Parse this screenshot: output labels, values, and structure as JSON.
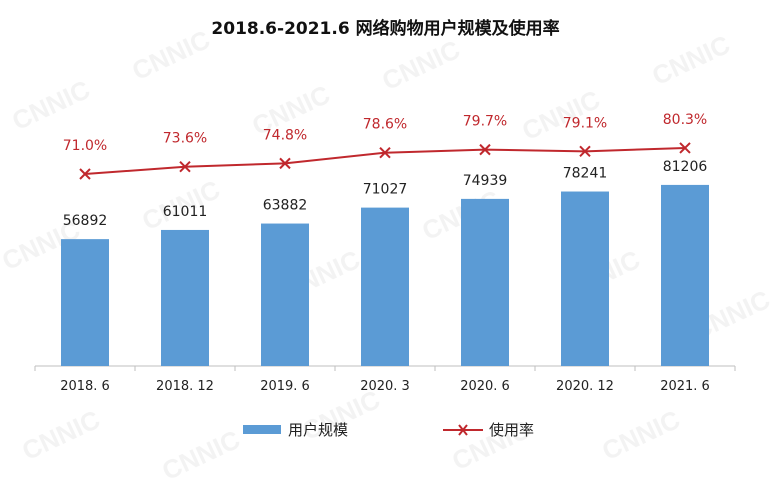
{
  "watermark": "CNNIC",
  "chart_data": {
    "type": "bar+line",
    "title": "2018.6-2021.6 网络购物用户规模及使用率",
    "categories": [
      "2018. 6",
      "2018. 12",
      "2019. 6",
      "2020. 3",
      "2020. 6",
      "2020. 12",
      "2021. 6"
    ],
    "series": [
      {
        "name": "用户规模",
        "type": "bar",
        "color": "#5b9bd5",
        "values": [
          56892,
          61011,
          63882,
          71027,
          74939,
          78241,
          81206
        ],
        "labels": [
          "56892",
          "61011",
          "63882",
          "71027",
          "74939",
          "78241",
          "81206"
        ]
      },
      {
        "name": "使用率",
        "type": "line",
        "color": "#c0282d",
        "values": [
          71.0,
          73.6,
          74.8,
          78.6,
          79.7,
          79.1,
          80.3
        ],
        "labels": [
          "71.0%",
          "73.6%",
          "74.8%",
          "78.6%",
          "79.7%",
          "79.1%",
          "80.3%"
        ]
      }
    ],
    "ylim": [
      0,
      100000
    ],
    "grid": false,
    "axes_visible": false,
    "legend_position": "bottom"
  }
}
